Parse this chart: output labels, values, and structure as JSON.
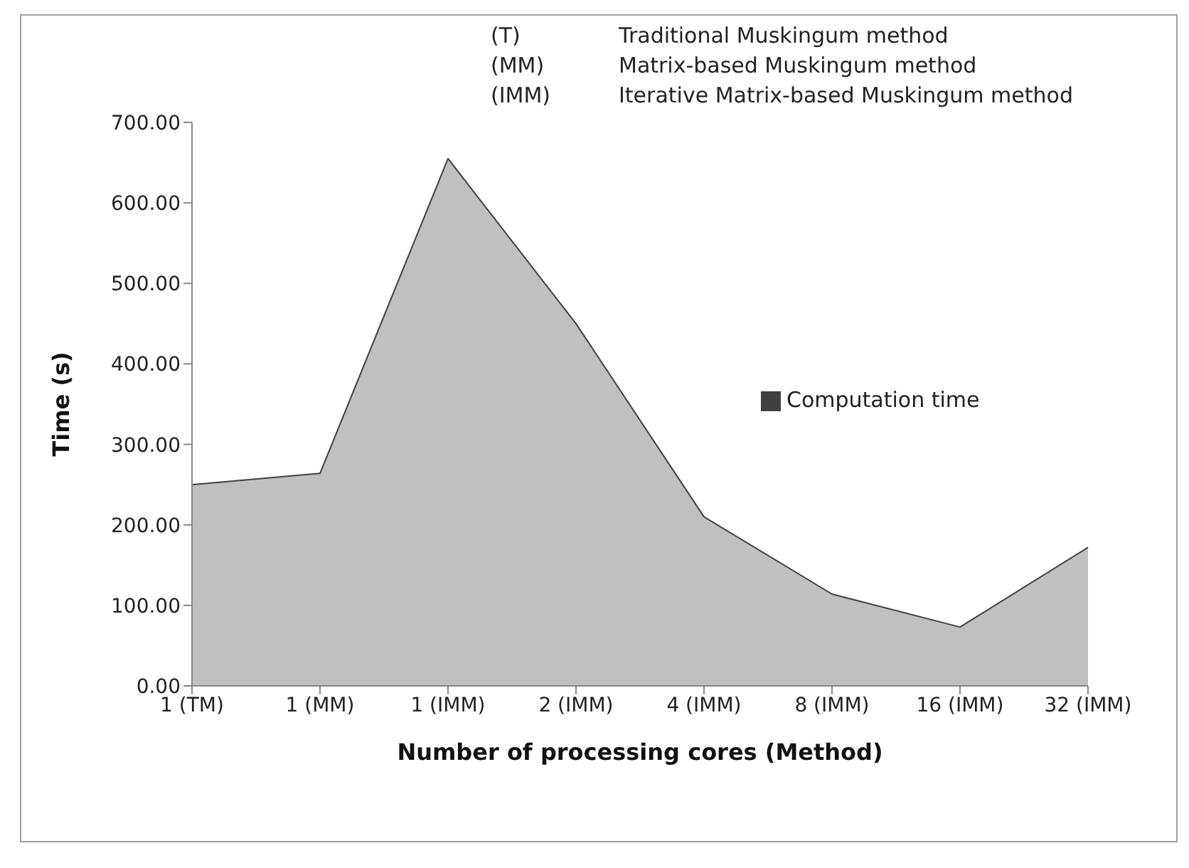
{
  "chart_data": {
    "type": "area",
    "xlabel": "Number of processing cores (Method)",
    "ylabel": "Time (s)",
    "categories": [
      "1 (TM)",
      "1 (MM)",
      "1 (IMM)",
      "2 (IMM)",
      "4 (IMM)",
      "8 (IMM)",
      "16 (IMM)",
      "32 (IMM)"
    ],
    "series": [
      {
        "name": "Computation time",
        "color": "#c0c0c0",
        "values": [
          250,
          264,
          655,
          450,
          210,
          114,
          73,
          172
        ]
      }
    ],
    "ylim": [
      0,
      700
    ],
    "yticks": [
      {
        "value": 0,
        "label": "0.00"
      },
      {
        "value": 100,
        "label": "100.00"
      },
      {
        "value": 200,
        "label": "200.00"
      },
      {
        "value": 300,
        "label": "300.00"
      },
      {
        "value": 400,
        "label": "400.00"
      },
      {
        "value": 500,
        "label": "500.00"
      },
      {
        "value": 600,
        "label": "600.00"
      },
      {
        "value": 700,
        "label": "700.00"
      }
    ],
    "grid": false,
    "legend": "right",
    "annotations": [
      "(T)",
      "Traditional Muskingum method",
      "(MM)",
      "Matrix-based Muskingum method",
      "(IMM)",
      "Iterative Matrix-based Muskingum method"
    ]
  }
}
